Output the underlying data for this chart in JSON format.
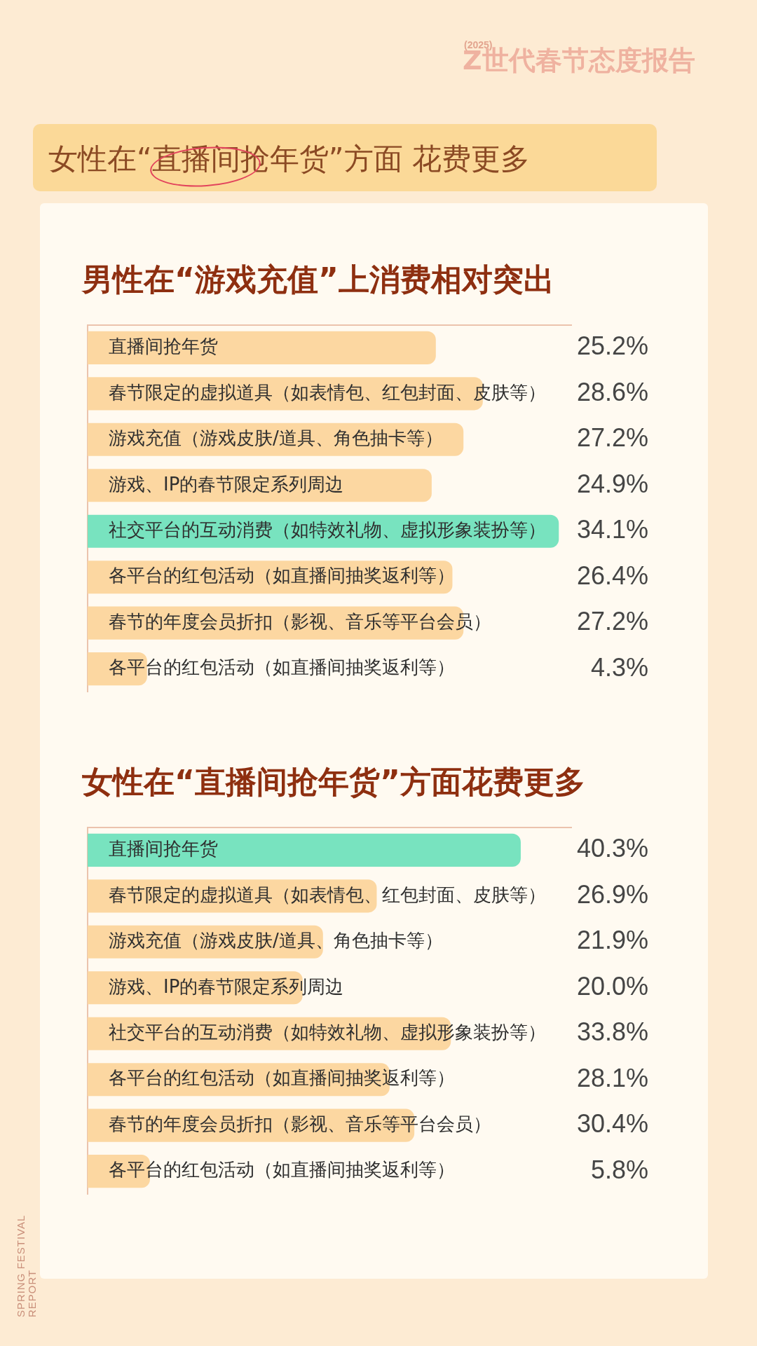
{
  "chart_data": [
    {
      "type": "other",
      "title": "女性在“直播间抢年货”方面 花费更多",
      "annotations": [
        "(2025)",
        "Z世代春节态度报告"
      ]
    },
    {
      "type": "bar",
      "orientation": "horizontal",
      "title": "男性在“游戏充值”上消费相对突出",
      "categories": [
        "直播间抢年货",
        "春节限定的虚拟道具（如表情包、红包封面、皮肤等）",
        "游戏充值（游戏皮肤/道具、角色抽卡等）",
        "游戏、IP的春节限定系列周边",
        "社交平台的互动消费（如特效礼物、虚拟形象装扮等）",
        "各平台的红包活动（如直播间抽奖返利等）",
        "春节的年度会员折扣（影视、音乐等平台会员）",
        "各平台的红包活动（如直播间抽奖返利等）"
      ],
      "values": [
        25.2,
        28.6,
        27.2,
        24.9,
        34.1,
        26.4,
        27.2,
        4.3
      ],
      "value_labels": [
        "25.2%",
        "28.6%",
        "27.2%",
        "24.9%",
        "34.1%",
        "26.4%",
        "27.2%",
        "4.3%"
      ],
      "colors": [
        "#fcd7a1",
        "#fcd7a1",
        "#fcd7a1",
        "#fcd7a1",
        "#78e3bf",
        "#fcd7a1",
        "#fcd7a1",
        "#fcd7a1"
      ],
      "tick_labels": "y"
    },
    {
      "type": "bar",
      "orientation": "horizontal",
      "title": "女性在“直播间抢年货”方面花费更多",
      "categories": [
        "直播间抢年货",
        "春节限定的虚拟道具（如表情包、红包封面、皮肤等）",
        "游戏充值（游戏皮肤/道具、角色抽卡等）",
        "游戏、IP的春节限定系列周边",
        "社交平台的互动消费（如特效礼物、虚拟形象装扮等）",
        "各平台的红包活动（如直播间抽奖返利等）",
        "春节的年度会员折扣（影视、音乐等平台会员）",
        "各平台的红包活动（如直播间抽奖返利等）"
      ],
      "values": [
        40.3,
        26.9,
        21.9,
        20.0,
        33.8,
        28.1,
        30.4,
        5.8
      ],
      "value_labels": [
        "40.3%",
        "26.9%",
        "21.9%",
        "20.0%",
        "33.8%",
        "28.1%",
        "30.4%",
        "5.8%"
      ],
      "colors": [
        "#78e3bf",
        "#fcd7a1",
        "#fcd7a1",
        "#fcd7a1",
        "#fcd7a1",
        "#fcd7a1",
        "#fcd7a1",
        "#fcd7a1"
      ],
      "tick_labels": "y",
      "annotations": [
        "SPRING FESTIVAL REPORT"
      ]
    }
  ]
}
